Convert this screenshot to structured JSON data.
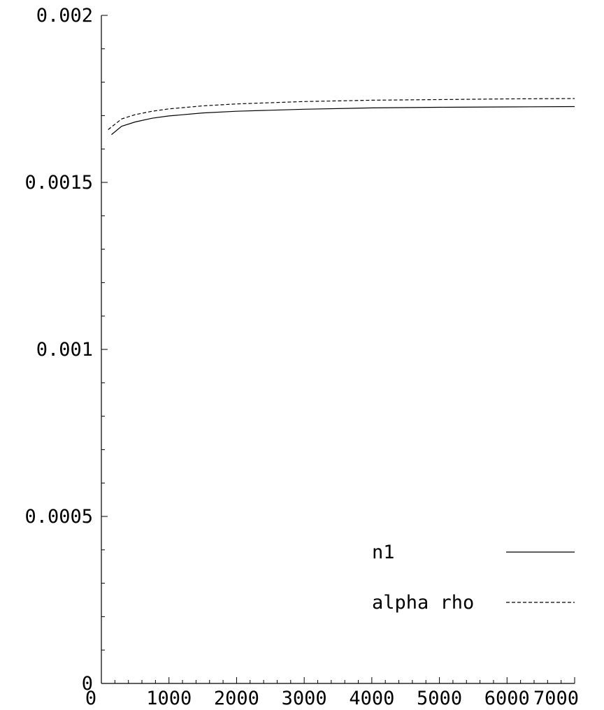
{
  "chart_data": {
    "type": "line",
    "title": "",
    "xlabel": "",
    "ylabel": "",
    "xlim": [
      0,
      7000
    ],
    "ylim": [
      0,
      0.002
    ],
    "x_ticks": [
      {
        "value": 0,
        "label": "0"
      },
      {
        "value": 1000,
        "label": "1000"
      },
      {
        "value": 2000,
        "label": "2000"
      },
      {
        "value": 3000,
        "label": "3000"
      },
      {
        "value": 4000,
        "label": "4000"
      },
      {
        "value": 5000,
        "label": "5000"
      },
      {
        "value": 6000,
        "label": "6000"
      },
      {
        "value": 7000,
        "label": "7000"
      }
    ],
    "y_ticks": [
      {
        "value": 0,
        "label": "0"
      },
      {
        "value": 0.0005,
        "label": "0.0005"
      },
      {
        "value": 0.001,
        "label": "0.001"
      },
      {
        "value": 0.0015,
        "label": "0.0015"
      },
      {
        "value": 0.002,
        "label": "0.002"
      }
    ],
    "grid": false,
    "legend_position": "bottom-right",
    "series": [
      {
        "name": "n1",
        "style": "solid",
        "x": [
          150,
          300,
          500,
          750,
          1000,
          1500,
          2000,
          3000,
          4000,
          5000,
          6000,
          7000
        ],
        "y": [
          0.001643,
          0.001668,
          0.001681,
          0.001692,
          0.001699,
          0.001708,
          0.001713,
          0.001719,
          0.001723,
          0.001725,
          0.001726,
          0.001727
        ]
      },
      {
        "name": "alpha rho",
        "style": "dashed",
        "x": [
          100,
          300,
          500,
          750,
          1000,
          1500,
          2000,
          3000,
          4000,
          5000,
          6000,
          7000
        ],
        "y": [
          0.001658,
          0.00169,
          0.001703,
          0.001713,
          0.00172,
          0.001729,
          0.001735,
          0.001742,
          0.001746,
          0.001748,
          0.00175,
          0.001751
        ]
      }
    ]
  }
}
